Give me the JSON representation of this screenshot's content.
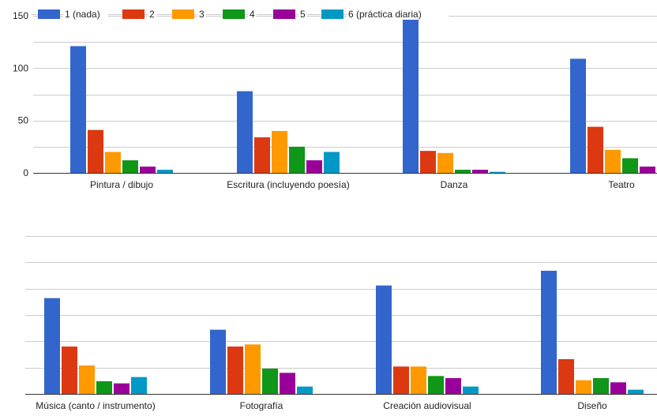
{
  "colors": [
    "#3366cc",
    "#dc3912",
    "#ff9900",
    "#109618",
    "#990099",
    "#0099c6"
  ],
  "chart_data": [
    {
      "type": "bar",
      "legend_position": "top-left",
      "grid": true,
      "ylim": [
        0,
        150
      ],
      "yticks": [
        0,
        50,
        100,
        150
      ],
      "series": [
        {
          "name": "1 (nada)"
        },
        {
          "name": "2"
        },
        {
          "name": "3"
        },
        {
          "name": "4"
        },
        {
          "name": "5"
        },
        {
          "name": "6 (práctica diaria)"
        }
      ],
      "categories": [
        "Pintura / dibujo",
        "Escritura (incluyendo poesía)",
        "Danza",
        "Teatro"
      ],
      "values": [
        [
          121,
          41,
          20,
          12,
          6,
          3
        ],
        [
          78,
          34,
          40,
          25,
          12,
          20
        ],
        [
          147,
          21,
          19,
          3,
          3,
          1
        ],
        [
          109,
          44,
          22,
          14,
          6,
          0
        ]
      ]
    },
    {
      "type": "bar",
      "grid": true,
      "ylim": [
        0,
        150
      ],
      "yticks": [],
      "categories": [
        "Música (canto / instrumento)",
        "Fotografía",
        "Creación audiovisual",
        "Diseño"
      ],
      "values": [
        [
          91,
          45,
          27,
          12,
          10,
          16
        ],
        [
          61,
          45,
          47,
          24,
          20,
          7
        ],
        [
          103,
          26,
          26,
          17,
          15,
          7
        ],
        [
          117,
          33,
          13,
          15,
          11,
          4
        ]
      ]
    }
  ]
}
